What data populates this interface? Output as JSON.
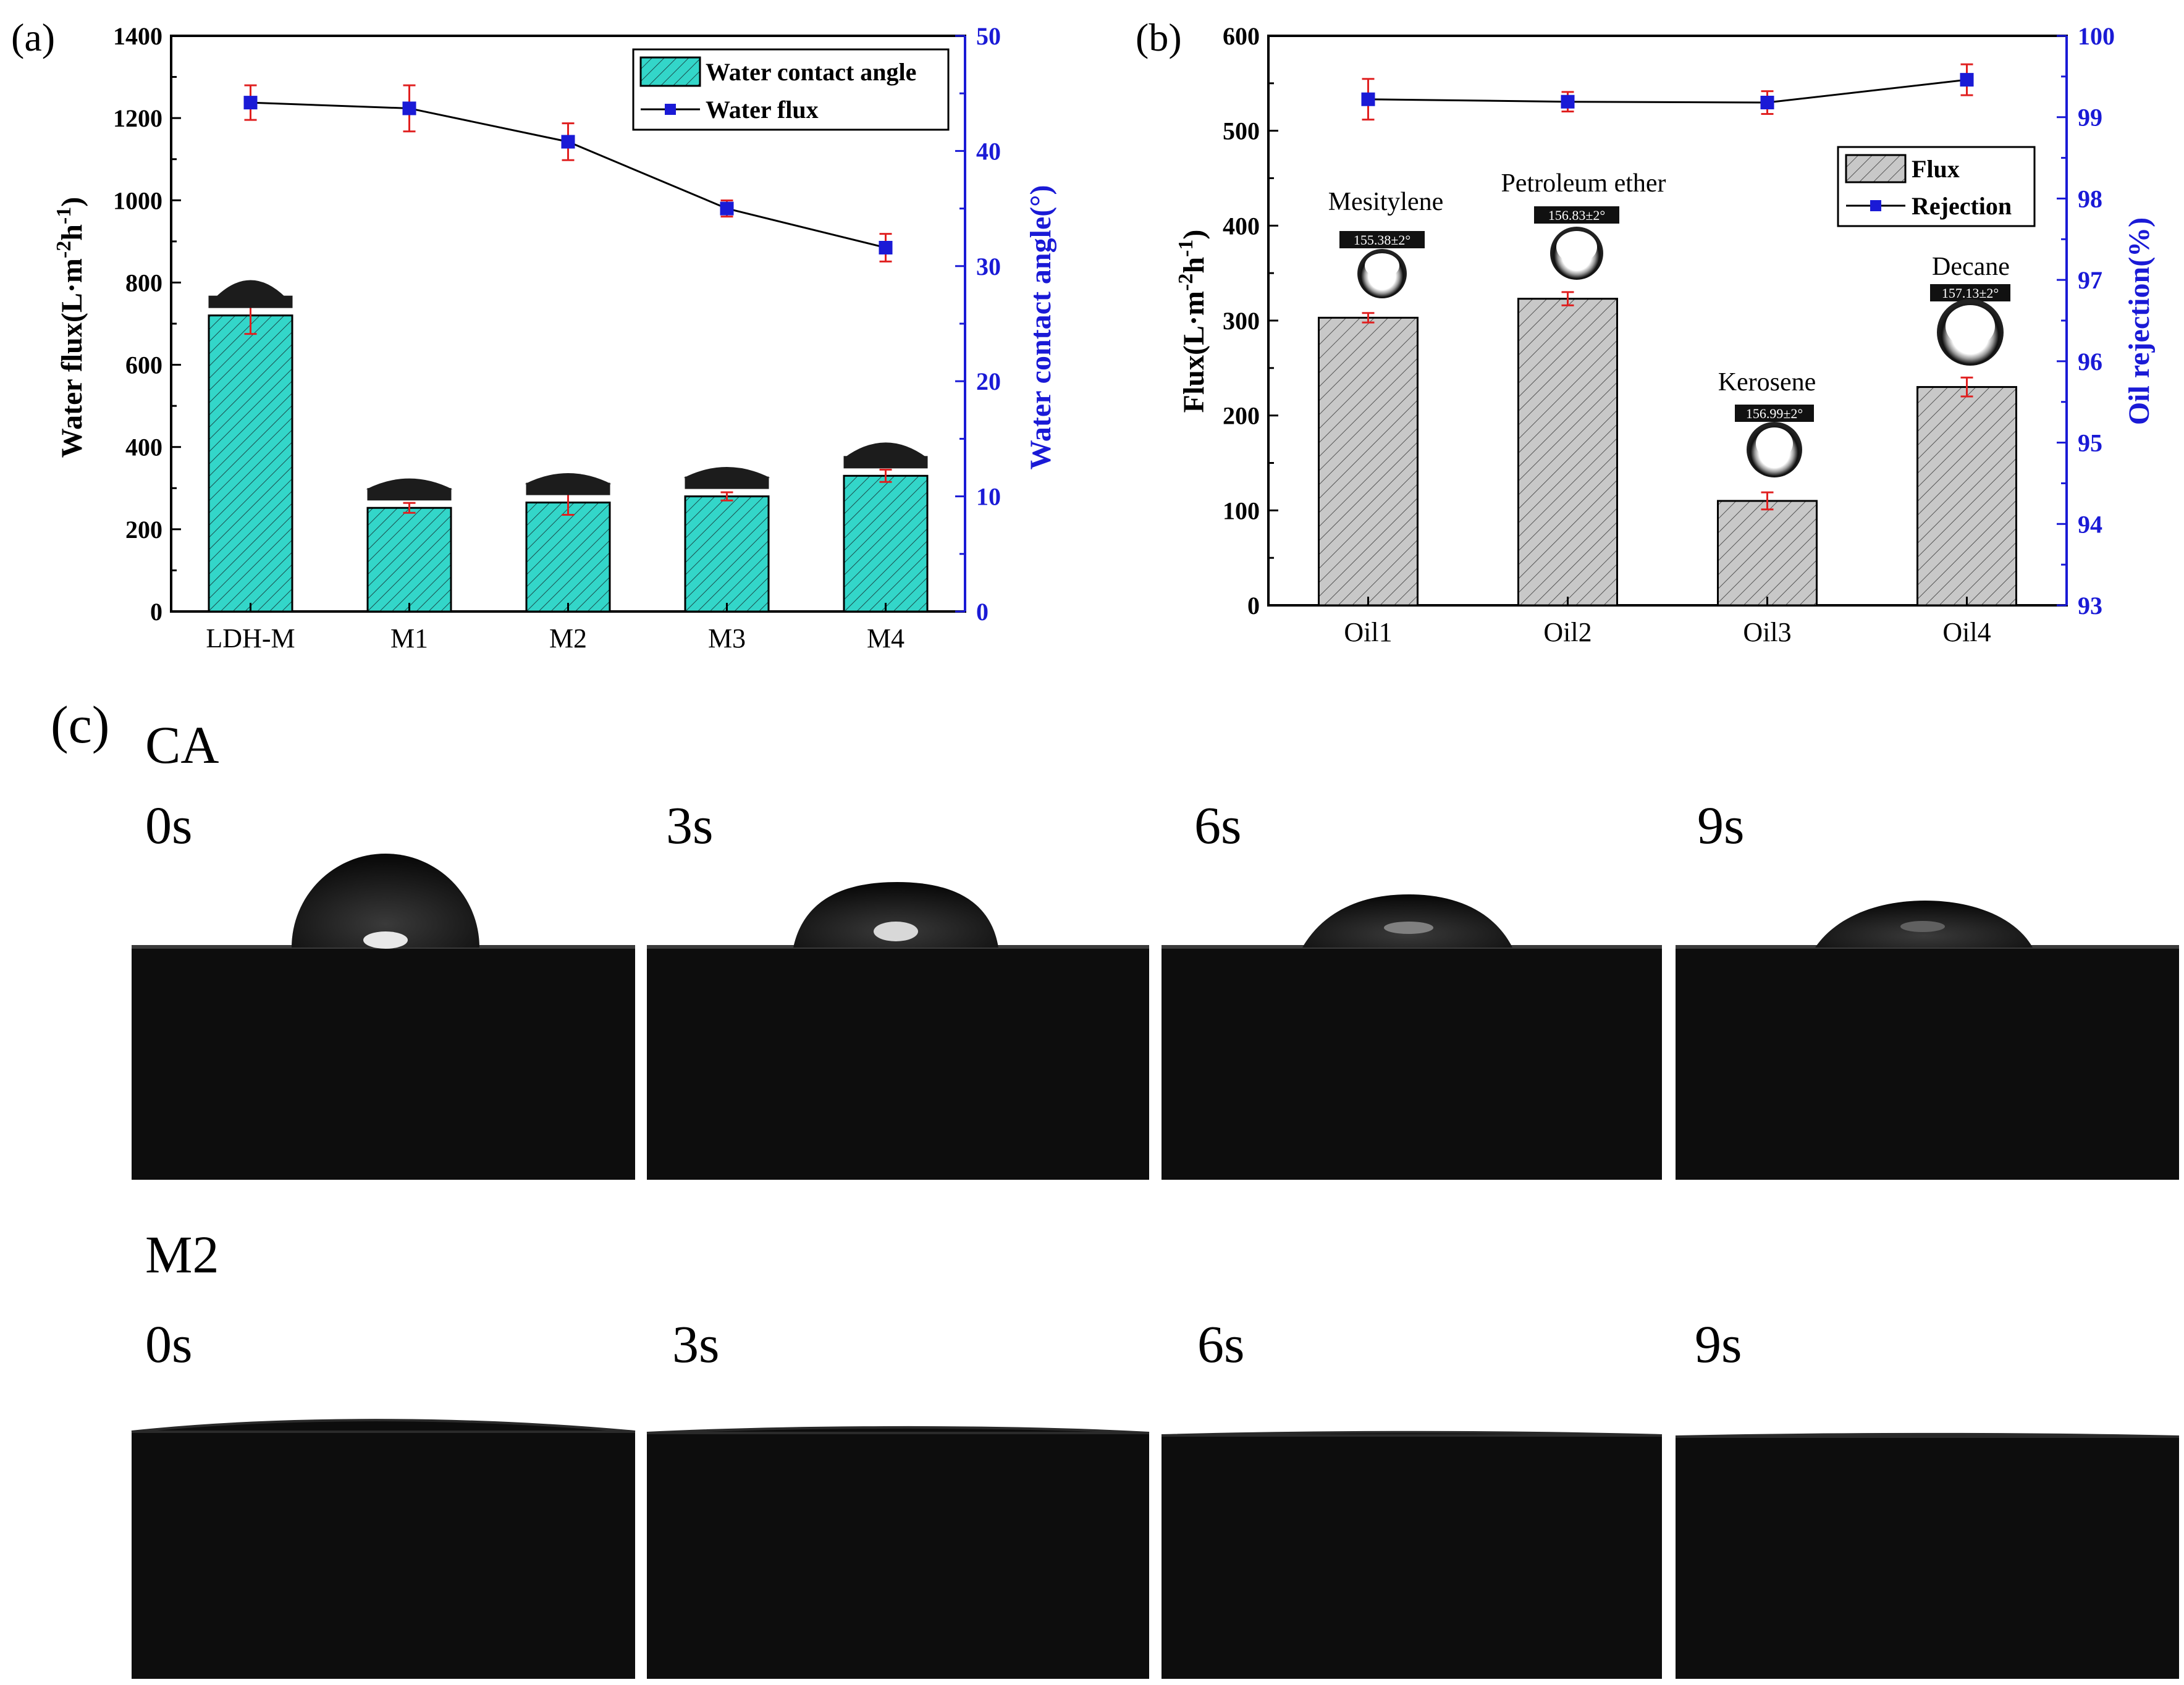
{
  "colors": {
    "bar_cyan": "#33d6c9",
    "bar_gray": "#bdbdbd",
    "blue": "#1a1ad6",
    "err": "#e02020",
    "photo_bg": "#0d0d0d"
  },
  "panel_labels": {
    "a": "(a)",
    "b": "(b)",
    "c": "(c)"
  },
  "chart_data": [
    {
      "id": "a",
      "type": "bar+line",
      "categories": [
        "LDH-M",
        "M1",
        "M2",
        "M3",
        "M4"
      ],
      "ylabel": "Water flux(L·m−2h−1)",
      "ylabel_parts": {
        "main": "Water flux(L·m",
        "sup1": "-2",
        "mid": "h",
        "sup2": "-1",
        "end": ")"
      },
      "y2label": "Water contact angle(°)",
      "ylim": [
        0,
        1400
      ],
      "y2lim": [
        0,
        50
      ],
      "yticks": [
        "0",
        "200",
        "400",
        "600",
        "800",
        "1000",
        "1200",
        "1400"
      ],
      "y2ticks": [
        "0",
        "10",
        "20",
        "30",
        "40",
        "50"
      ],
      "series": [
        {
          "name": "Water contact angle",
          "kind": "bar",
          "axis": "y",
          "values": [
            720,
            252,
            265,
            280,
            330
          ],
          "errors": [
            45,
            12,
            30,
            10,
            15
          ]
        },
        {
          "name": "Water flux",
          "kind": "line",
          "axis": "y2",
          "values": [
            44.2,
            43.7,
            40.8,
            35.0,
            31.6
          ],
          "errors": [
            1.5,
            2.0,
            1.6,
            0.7,
            1.2
          ]
        }
      ]
    },
    {
      "id": "b",
      "type": "bar+line",
      "categories": [
        "Oil1",
        "Oil2",
        "Oil3",
        "Oil4"
      ],
      "ylabel": "Flux(L·m−2h−1)",
      "ylabel_parts": {
        "main": "Flux(L·m",
        "sup1": "-2",
        "mid": "h",
        "sup2": "-1",
        "end": ")"
      },
      "y2label": "Oil rejection(%)",
      "ylim": [
        0,
        600
      ],
      "y2lim": [
        93,
        100
      ],
      "yticks": [
        "0",
        "100",
        "200",
        "300",
        "400",
        "500",
        "600"
      ],
      "y2ticks": [
        "93",
        "94",
        "95",
        "96",
        "97",
        "98",
        "99",
        "100"
      ],
      "series": [
        {
          "name": "Flux",
          "kind": "bar",
          "axis": "y",
          "values": [
            303,
            323,
            110,
            230
          ],
          "errors": [
            5,
            7,
            9,
            10
          ]
        },
        {
          "name": "Rejection",
          "kind": "line",
          "axis": "y2",
          "values": [
            99.22,
            99.19,
            99.18,
            99.46
          ],
          "errors": [
            0.25,
            0.12,
            0.14,
            0.19
          ]
        }
      ],
      "annotations": [
        {
          "oil": "Mesitylene",
          "angle": "155.38±2°"
        },
        {
          "oil": "Petroleum ether",
          "angle": "156.83±2°"
        },
        {
          "oil": "Kerosene",
          "angle": "156.99±2°"
        },
        {
          "oil": "Decane",
          "angle": "157.13±2°"
        }
      ]
    }
  ],
  "panel_c": {
    "rows": [
      {
        "label": "CA",
        "times": [
          "0s",
          "3s",
          "6s",
          "9s"
        ]
      },
      {
        "label": "M2",
        "times": [
          "0s",
          "3s",
          "6s",
          "9s"
        ]
      }
    ]
  }
}
